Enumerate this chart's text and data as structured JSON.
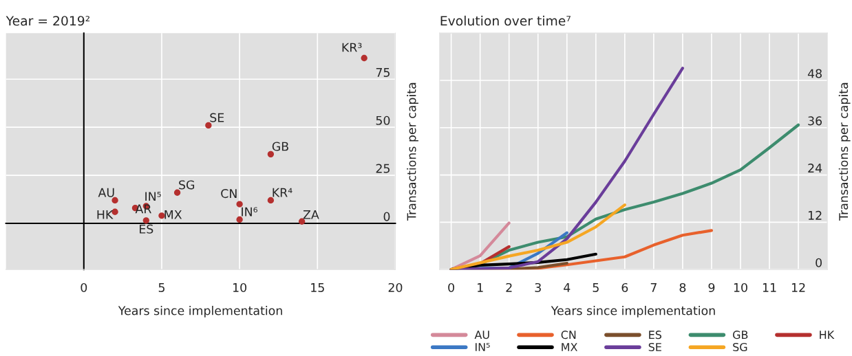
{
  "chart_data": [
    {
      "type": "scatter",
      "title": "Year = 2019²",
      "xlabel": "Years since implementation",
      "ylabel": "Transactions per capita",
      "x": [
        18,
        8,
        12,
        6,
        2,
        4,
        10,
        12,
        3.3,
        2,
        5,
        10,
        4,
        14
      ],
      "values": [
        86,
        51,
        36,
        16,
        12,
        9,
        10,
        12,
        8,
        6,
        4,
        2,
        1.5,
        1
      ],
      "color": "#b5302f",
      "marker": "circle",
      "annotations": [
        {
          "text": "KR³",
          "x": 18,
          "y": 86
        },
        {
          "text": "SE",
          "x": 8,
          "y": 51
        },
        {
          "text": "GB",
          "x": 12,
          "y": 36
        },
        {
          "text": "SG",
          "x": 6,
          "y": 16
        },
        {
          "text": "AU",
          "x": 2,
          "y": 12
        },
        {
          "text": "IN⁵",
          "x": 4,
          "y": 9
        },
        {
          "text": "CN",
          "x": 10,
          "y": 10
        },
        {
          "text": "KR⁴",
          "x": 12,
          "y": 12
        },
        {
          "text": "AR",
          "x": 3.3,
          "y": 8
        },
        {
          "text": "HK",
          "x": 2,
          "y": 6
        },
        {
          "text": "MX",
          "x": 5,
          "y": 4
        },
        {
          "text": "IN⁶",
          "x": 10,
          "y": 2
        },
        {
          "text": "ES",
          "x": 4,
          "y": 1.5
        },
        {
          "text": "ZA",
          "x": 14,
          "y": 1
        }
      ],
      "xlim": [
        -5,
        20
      ],
      "xticks": [
        0,
        5,
        10,
        15,
        20
      ],
      "ylim": [
        -24,
        99
      ],
      "yticks": [
        0,
        25,
        50,
        75
      ],
      "grid": true
    },
    {
      "type": "line",
      "title": "Evolution over time⁷",
      "xlabel": "Years since implementation",
      "ylabel": "Transactions per capita",
      "series": [
        {
          "name": "AU",
          "color": "#d4899a",
          "x": [
            0,
            1,
            2
          ],
          "values": [
            0,
            3.5,
            11.8
          ]
        },
        {
          "name": "CN",
          "color": "#e8612c",
          "x": [
            0,
            1,
            2,
            3,
            4,
            5,
            6,
            7,
            8,
            9
          ],
          "values": [
            0,
            0,
            0,
            0.3,
            1.2,
            2.2,
            3.2,
            6.2,
            8.7,
            9.9
          ]
        },
        {
          "name": "ES",
          "color": "#7b4f2c",
          "x": [
            0,
            1,
            2,
            3,
            4
          ],
          "values": [
            0,
            0,
            0.1,
            0.5,
            1.6
          ]
        },
        {
          "name": "GB",
          "color": "#3d8c6e",
          "x": [
            0,
            1,
            2,
            3,
            4,
            5,
            6,
            7,
            8,
            9,
            10,
            11,
            12
          ],
          "values": [
            0,
            1.3,
            4.9,
            6.9,
            8.3,
            12.8,
            15.2,
            17.1,
            19.3,
            21.9,
            25.3,
            30.9,
            36.7
          ]
        },
        {
          "name": "HK",
          "color": "#b5302f",
          "x": [
            0,
            1,
            2
          ],
          "values": [
            0,
            1.5,
            5.8
          ]
        },
        {
          "name": "IN⁵",
          "color": "#3b78c4",
          "x": [
            0,
            1,
            2,
            3,
            4
          ],
          "values": [
            0,
            0.3,
            0.4,
            4.1,
            9.3
          ]
        },
        {
          "name": "MX",
          "color": "#000000",
          "x": [
            0,
            1,
            2,
            3,
            4,
            5
          ],
          "values": [
            0,
            1.1,
            1.4,
            1.8,
            2.5,
            3.9
          ]
        },
        {
          "name": "SE",
          "color": "#6a3d9a",
          "x": [
            0,
            1,
            2,
            3,
            4,
            5,
            6,
            7,
            8
          ],
          "values": [
            0,
            0.2,
            0.4,
            2.0,
            7.8,
            17.1,
            27.5,
            39.4,
            51.1
          ]
        },
        {
          "name": "SG",
          "color": "#f5a623",
          "x": [
            0,
            1,
            2,
            3,
            4,
            5,
            6
          ],
          "values": [
            0,
            1.7,
            3.4,
            4.9,
            6.9,
            10.8,
            16.4
          ]
        }
      ],
      "xlim": [
        -0.4,
        13
      ],
      "xticks": [
        0,
        1,
        2,
        3,
        4,
        5,
        6,
        7,
        8,
        9,
        10,
        11,
        12
      ],
      "ylim": [
        0,
        60
      ],
      "yticks": [
        0,
        12,
        24,
        36,
        48
      ],
      "grid": true,
      "legend": "bottom",
      "line_style": "solid"
    }
  ]
}
